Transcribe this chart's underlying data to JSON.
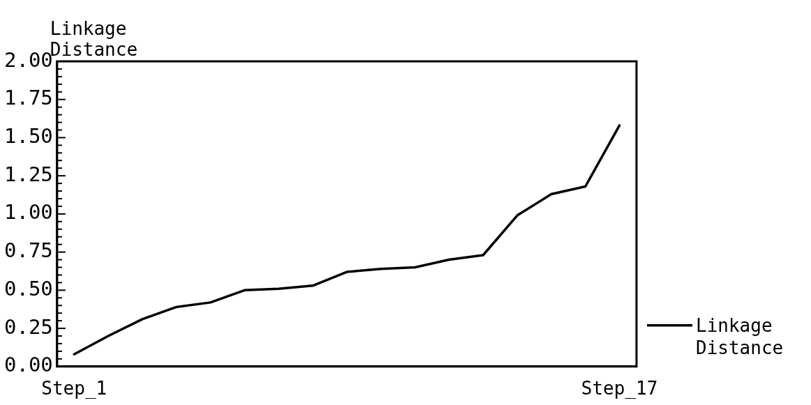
{
  "chart_data": {
    "type": "line",
    "ylabel": "Linkage Distance",
    "categories": [
      "Step_1",
      null,
      null,
      null,
      null,
      null,
      null,
      null,
      null,
      null,
      null,
      null,
      null,
      null,
      null,
      null,
      "Step_17"
    ],
    "series": [
      {
        "name": "Linkage Distance",
        "color": "#000000",
        "values": [
          0.08,
          0.2,
          0.31,
          0.39,
          0.42,
          0.5,
          0.51,
          0.53,
          0.62,
          0.64,
          0.65,
          0.7,
          0.73,
          0.99,
          1.13,
          1.18,
          1.58
        ]
      }
    ],
    "ylim": [
      0,
      2
    ],
    "yticks": [
      {
        "value": 0,
        "label": "0.00"
      },
      {
        "value": 0.05,
        "label": null
      },
      {
        "value": 0.1,
        "label": null
      },
      {
        "value": 0.15,
        "label": null
      },
      {
        "value": 0.2,
        "label": null
      },
      {
        "value": 0.25,
        "label": "0.25"
      },
      {
        "value": 0.3,
        "label": null
      },
      {
        "value": 0.35,
        "label": null
      },
      {
        "value": 0.4,
        "label": null
      },
      {
        "value": 0.45,
        "label": null
      },
      {
        "value": 0.5,
        "label": "0.50"
      },
      {
        "value": 0.55,
        "label": null
      },
      {
        "value": 0.6,
        "label": null
      },
      {
        "value": 0.65,
        "label": null
      },
      {
        "value": 0.7,
        "label": null
      },
      {
        "value": 0.75,
        "label": "0.75"
      },
      {
        "value": 0.8,
        "label": null
      },
      {
        "value": 0.85,
        "label": null
      },
      {
        "value": 0.9,
        "label": null
      },
      {
        "value": 0.95,
        "label": null
      },
      {
        "value": 1,
        "label": "1.00"
      },
      {
        "value": 1.05,
        "label": null
      },
      {
        "value": 1.1,
        "label": null
      },
      {
        "value": 1.15,
        "label": null
      },
      {
        "value": 1.2,
        "label": null
      },
      {
        "value": 1.25,
        "label": "1.25"
      },
      {
        "value": 1.3,
        "label": null
      },
      {
        "value": 1.35,
        "label": null
      },
      {
        "value": 1.4,
        "label": null
      },
      {
        "value": 1.45,
        "label": null
      },
      {
        "value": 1.5,
        "label": "1.50"
      },
      {
        "value": 1.55,
        "label": null
      },
      {
        "value": 1.6,
        "label": null
      },
      {
        "value": 1.65,
        "label": null
      },
      {
        "value": 1.7,
        "label": null
      },
      {
        "value": 1.75,
        "label": "1.75"
      },
      {
        "value": 1.8,
        "label": null
      },
      {
        "value": 1.85,
        "label": null
      },
      {
        "value": 1.9,
        "label": null
      },
      {
        "value": 1.95,
        "label": null
      },
      {
        "value": 2,
        "label": "2.00"
      }
    ],
    "legend": "right",
    "marker": "none",
    "line_style": "solid",
    "grid": false
  }
}
